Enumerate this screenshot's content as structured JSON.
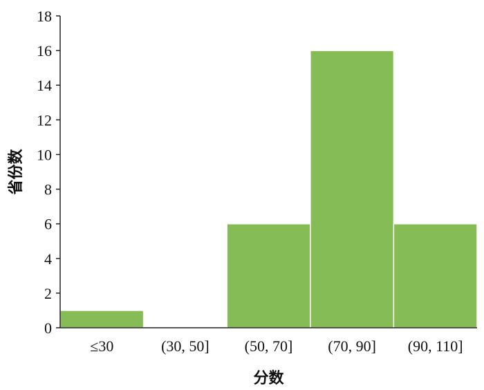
{
  "chart_data": {
    "type": "bar",
    "title": "",
    "xlabel": "分数",
    "ylabel": "省份数",
    "categories": [
      "≤30",
      "(30, 50]",
      "(50, 70]",
      "(70, 90]",
      "(90, 110]"
    ],
    "values": [
      1,
      0,
      6,
      16,
      6
    ],
    "ylim": [
      0,
      18
    ],
    "yticks": [
      0,
      2,
      4,
      6,
      8,
      10,
      12,
      14,
      16,
      18
    ],
    "grid": false,
    "bar_color": "#86BC56"
  }
}
